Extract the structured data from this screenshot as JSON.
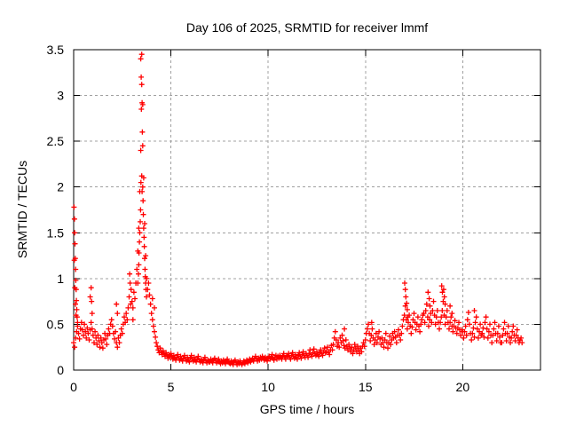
{
  "window": {
    "title": "Day 106 of 2025, SRMTID for receiver lmmf"
  },
  "colors": {
    "marker": "#ff0000",
    "grid": "#a0a0a0",
    "axis": "#000000",
    "background": "#ffffff",
    "text": "#000000"
  },
  "chart_data": {
    "type": "scatter",
    "title": "Day 106 of 2025, SRMTID for receiver lmmf",
    "xlabel": "GPS time / hours",
    "ylabel": "SRMTID / TECUs",
    "xlim": [
      0,
      24
    ],
    "ylim": [
      0,
      3.5
    ],
    "xticks": [
      0,
      5,
      10,
      15,
      20
    ],
    "xtick_labels": [
      "0",
      "5",
      "10",
      "15",
      "20"
    ],
    "yticks": [
      0,
      0.5,
      1,
      1.5,
      2,
      2.5,
      3,
      3.5
    ],
    "ytick_labels": [
      "0",
      "0.5",
      "1",
      "1.5",
      "2",
      "2.5",
      "3",
      "3.5"
    ],
    "grid": true,
    "legend": "none",
    "marker": "plus",
    "series": [
      {
        "name": "SRMTID",
        "x_start": 0,
        "x_step": 0.05,
        "y": [
          0.3,
          0.25,
          0.35,
          0.42,
          0.48,
          0.4,
          0.34,
          0.45,
          0.52,
          0.44,
          0.38,
          0.5,
          0.42,
          0.35,
          0.46,
          0.4,
          0.33,
          0.44,
          0.52,
          0.45,
          0.38,
          0.3,
          0.42,
          0.35,
          0.28,
          0.38,
          0.32,
          0.25,
          0.35,
          0.3,
          0.24,
          0.33,
          0.4,
          0.34,
          0.28,
          0.38,
          0.45,
          0.4,
          0.5,
          0.55,
          0.48,
          0.4,
          0.34,
          0.42,
          0.3,
          0.25,
          0.35,
          0.3,
          0.38,
          0.45,
          0.4,
          0.5,
          0.58,
          0.52,
          0.62,
          0.55,
          0.68,
          0.8,
          0.95,
          0.88,
          0.75,
          0.68,
          0.85,
          0.78,
          0.95,
          1.1,
          1.3,
          1.55,
          1.95,
          2.4,
          3.45,
          2.9,
          2.1,
          1.6,
          1.25,
          1.0,
          0.88,
          0.95,
          0.82,
          0.72,
          0.62,
          0.55,
          0.48,
          0.42,
          0.36,
          0.3,
          0.26,
          0.22,
          0.19,
          0.24,
          0.2,
          0.17,
          0.21,
          0.18,
          0.15,
          0.19,
          0.16,
          0.13,
          0.17,
          0.14,
          0.18,
          0.15,
          0.12,
          0.16,
          0.13,
          0.11,
          0.14,
          0.17,
          0.13,
          0.11,
          0.15,
          0.12,
          0.1,
          0.13,
          0.16,
          0.12,
          0.1,
          0.14,
          0.11,
          0.09,
          0.13,
          0.16,
          0.12,
          0.1,
          0.14,
          0.11,
          0.09,
          0.12,
          0.15,
          0.11,
          0.09,
          0.12,
          0.1,
          0.08,
          0.11,
          0.14,
          0.1,
          0.08,
          0.11,
          0.09,
          0.09,
          0.12,
          0.1,
          0.08,
          0.11,
          0.13,
          0.1,
          0.08,
          0.1,
          0.12,
          0.09,
          0.07,
          0.1,
          0.08,
          0.11,
          0.09,
          0.07,
          0.1,
          0.12,
          0.09,
          0.08,
          0.07,
          0.1,
          0.08,
          0.06,
          0.09,
          0.11,
          0.08,
          0.06,
          0.09,
          0.07,
          0.1,
          0.08,
          0.06,
          0.08,
          0.1,
          0.07,
          0.09,
          0.11,
          0.08,
          0.1,
          0.12,
          0.09,
          0.11,
          0.13,
          0.1,
          0.12,
          0.15,
          0.12,
          0.1,
          0.13,
          0.11,
          0.14,
          0.12,
          0.15,
          0.13,
          0.11,
          0.14,
          0.12,
          0.1,
          0.13,
          0.15,
          0.12,
          0.14,
          0.17,
          0.13,
          0.11,
          0.14,
          0.16,
          0.12,
          0.15,
          0.13,
          0.16,
          0.14,
          0.12,
          0.15,
          0.18,
          0.14,
          0.12,
          0.16,
          0.15,
          0.18,
          0.14,
          0.12,
          0.16,
          0.19,
          0.15,
          0.13,
          0.17,
          0.14,
          0.12,
          0.16,
          0.19,
          0.15,
          0.13,
          0.17,
          0.2,
          0.16,
          0.14,
          0.18,
          0.16,
          0.14,
          0.18,
          0.22,
          0.17,
          0.15,
          0.19,
          0.23,
          0.18,
          0.16,
          0.2,
          0.17,
          0.15,
          0.19,
          0.22,
          0.18,
          0.16,
          0.2,
          0.24,
          0.19,
          0.2,
          0.25,
          0.2,
          0.17,
          0.22,
          0.27,
          0.22,
          0.28,
          0.35,
          0.42,
          0.33,
          0.26,
          0.3,
          0.25,
          0.35,
          0.3,
          0.38,
          0.32,
          0.27,
          0.24,
          0.33,
          0.26,
          0.22,
          0.28,
          0.24,
          0.2,
          0.25,
          0.18,
          0.22,
          0.28,
          0.24,
          0.2,
          0.26,
          0.22,
          0.18,
          0.24,
          0.2,
          0.26,
          0.3,
          0.26,
          0.33,
          0.4,
          0.45,
          0.5,
          0.4,
          0.32,
          0.38,
          0.45,
          0.35,
          0.28,
          0.33,
          0.4,
          0.3,
          0.36,
          0.42,
          0.34,
          0.28,
          0.35,
          0.3,
          0.25,
          0.33,
          0.4,
          0.3,
          0.24,
          0.3,
          0.37,
          0.28,
          0.33,
          0.4,
          0.35,
          0.42,
          0.36,
          0.3,
          0.38,
          0.44,
          0.38,
          0.33,
          0.4,
          0.48,
          0.55,
          0.6,
          0.7,
          0.55,
          0.45,
          0.52,
          0.6,
          0.48,
          0.4,
          0.47,
          0.55,
          0.62,
          0.52,
          0.44,
          0.5,
          0.58,
          0.48,
          0.42,
          0.5,
          0.55,
          0.6,
          0.62,
          0.52,
          0.65,
          0.72,
          0.58,
          0.48,
          0.55,
          0.62,
          0.52,
          0.65,
          0.75,
          0.6,
          0.5,
          0.58,
          0.65,
          0.52,
          0.45,
          0.52,
          0.58,
          0.65,
          0.75,
          0.6,
          0.5,
          0.58,
          0.65,
          0.52,
          0.45,
          0.52,
          0.58,
          0.48,
          0.42,
          0.48,
          0.54,
          0.46,
          0.4,
          0.46,
          0.52,
          0.44,
          0.38,
          0.44,
          0.42,
          0.35,
          0.42,
          0.48,
          0.38,
          0.55,
          0.63,
          0.5,
          0.4,
          0.33,
          0.4,
          0.46,
          0.36,
          0.52,
          0.58,
          0.45,
          0.35,
          0.42,
          0.5,
          0.38,
          0.4,
          0.46,
          0.36,
          0.52,
          0.58,
          0.45,
          0.35,
          0.42,
          0.5,
          0.38,
          0.3,
          0.38,
          0.45,
          0.52,
          0.4,
          0.32,
          0.4,
          0.48,
          0.36,
          0.3,
          0.3,
          0.38,
          0.45,
          0.52,
          0.4,
          0.32,
          0.4,
          0.48,
          0.36,
          0.3,
          0.35,
          0.42,
          0.48,
          0.38,
          0.32,
          0.38,
          0.44,
          0.35,
          0.3,
          0.33,
          0.35,
          0.3
        ],
        "extra_points": [
          [
            0.02,
            1.78
          ],
          [
            0.04,
            1.65
          ],
          [
            0.05,
            1.5
          ],
          [
            0.07,
            1.38
          ],
          [
            0.08,
            1.22
          ],
          [
            0.1,
            1.1
          ],
          [
            0.11,
            0.98
          ],
          [
            0.13,
            0.88
          ],
          [
            0.14,
            0.76
          ],
          [
            0.16,
            0.66
          ],
          [
            0.18,
            0.58
          ],
          [
            0.2,
            0.52
          ],
          [
            0.06,
            0.9
          ],
          [
            0.09,
            0.72
          ],
          [
            0.12,
            0.6
          ],
          [
            0.03,
            1.2
          ],
          [
            0.85,
            0.8
          ],
          [
            0.9,
            0.9
          ],
          [
            0.92,
            0.75
          ],
          [
            0.95,
            0.62
          ],
          [
            2.2,
            0.72
          ],
          [
            2.25,
            0.62
          ],
          [
            2.88,
            1.05
          ],
          [
            2.93,
            0.72
          ],
          [
            3.05,
            0.55
          ],
          [
            3.45,
            3.4
          ],
          [
            3.47,
            3.2
          ],
          [
            3.5,
            3.12
          ],
          [
            3.52,
            2.92
          ],
          [
            3.48,
            2.85
          ],
          [
            3.53,
            2.6
          ],
          [
            3.55,
            2.45
          ],
          [
            3.5,
            2.12
          ],
          [
            3.46,
            2.05
          ],
          [
            3.55,
            2.0
          ],
          [
            3.52,
            1.95
          ],
          [
            3.57,
            1.85
          ],
          [
            3.44,
            1.75
          ],
          [
            3.58,
            1.7
          ],
          [
            3.42,
            1.62
          ],
          [
            3.6,
            1.55
          ],
          [
            3.4,
            1.5
          ],
          [
            3.62,
            1.45
          ],
          [
            3.38,
            1.4
          ],
          [
            3.63,
            1.35
          ],
          [
            3.36,
            1.28
          ],
          [
            3.65,
            1.22
          ],
          [
            3.35,
            1.15
          ],
          [
            3.67,
            1.1
          ],
          [
            3.68,
            1.02
          ],
          [
            3.7,
            0.95
          ],
          [
            3.72,
            0.88
          ],
          [
            3.74,
            0.8
          ],
          [
            3.33,
            1.05
          ],
          [
            3.3,
            0.95
          ],
          [
            4.05,
            0.78
          ],
          [
            4.15,
            0.68
          ],
          [
            13.92,
            0.45
          ],
          [
            15.32,
            0.52
          ],
          [
            17.02,
            0.95
          ],
          [
            17.05,
            0.88
          ],
          [
            17.08,
            0.8
          ],
          [
            17.12,
            0.73
          ],
          [
            17.15,
            0.66
          ],
          [
            17.18,
            0.58
          ],
          [
            18.22,
            0.85
          ],
          [
            18.28,
            0.78
          ],
          [
            18.32,
            0.7
          ],
          [
            18.92,
            0.92
          ],
          [
            18.96,
            0.85
          ],
          [
            19.02,
            0.88
          ],
          [
            19.06,
            0.8
          ],
          [
            19.1,
            0.72
          ],
          [
            19.35,
            0.7
          ],
          [
            19.45,
            0.62
          ],
          [
            20.6,
            0.65
          ]
        ]
      }
    ]
  }
}
